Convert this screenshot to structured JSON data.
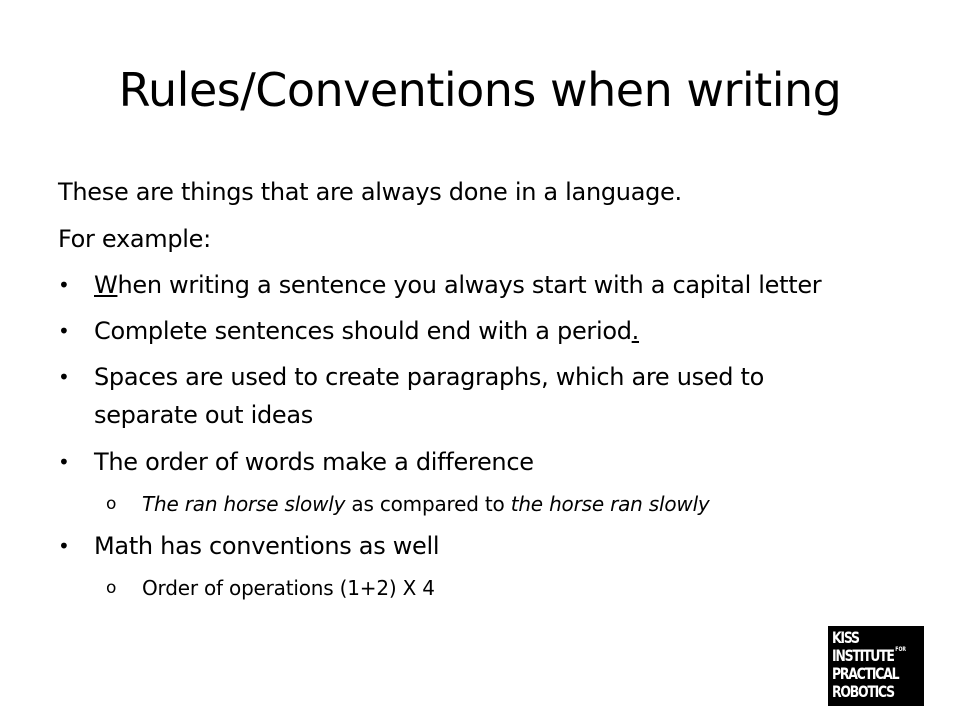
{
  "slide": {
    "title": "Rules/Conventions when writing",
    "intro": "These are things that are always done in a language.",
    "example_label": "For example:",
    "bullets": [
      {
        "first_letter": "W",
        "rest": "hen writing a sentence you always start with a capital letter"
      },
      {
        "text": "Complete sentences should end with a period",
        "period": "."
      },
      {
        "line1": "Spaces are used to create paragraphs, which are used to",
        "line2": "separate out ideas"
      },
      {
        "text": "The order of words make a difference"
      },
      {
        "text": "Math has conventions as well"
      }
    ],
    "sub_bullets": [
      {
        "italic_a": "The ran horse slowly",
        "plain": " as compared to ",
        "italic_b": "the horse ran slowly"
      },
      {
        "text": "Order of operations (1+2) X 4"
      }
    ],
    "bullet_glyph": "•",
    "sub_glyph": "o"
  },
  "logo": {
    "line1": "KISS",
    "line2": "INSTITUTE",
    "superscript": "FOR",
    "line3": "PRACTICAL",
    "line4": "ROBOTICS",
    "background": "#000000",
    "foreground": "#ffffff"
  }
}
